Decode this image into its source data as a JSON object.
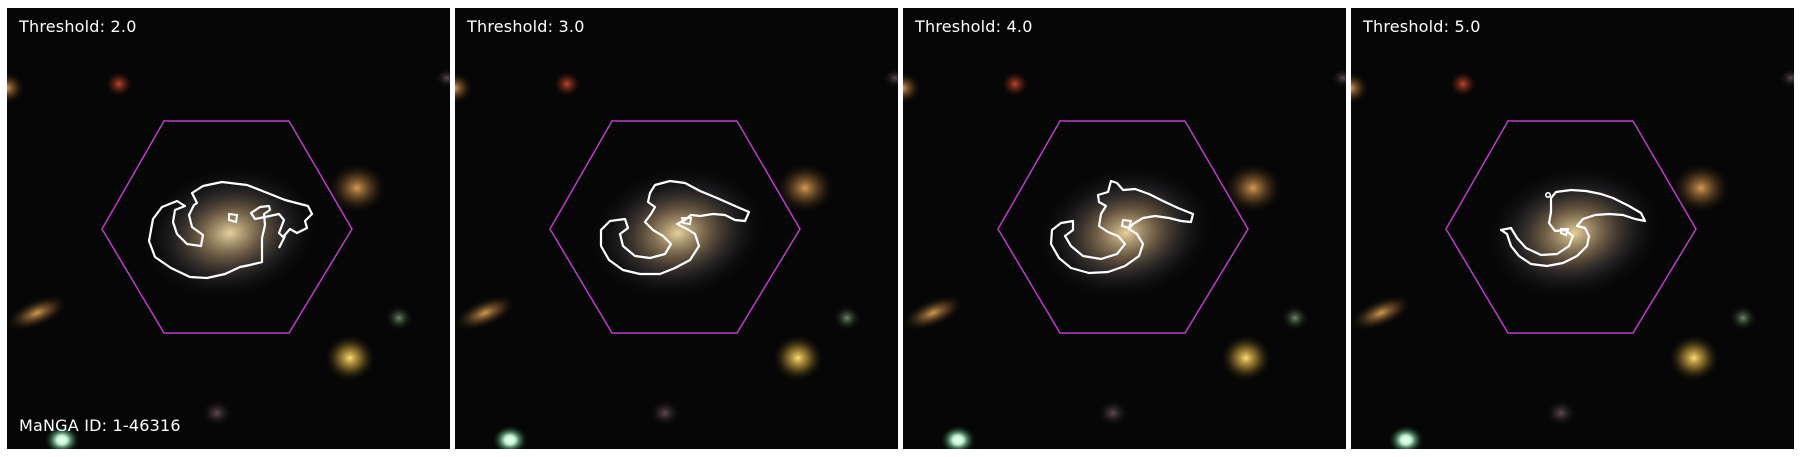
{
  "panels": [
    {
      "threshold_label": "Threshold: 2.0"
    },
    {
      "threshold_label": "Threshold: 3.0"
    },
    {
      "threshold_label": "Threshold: 4.0"
    },
    {
      "threshold_label": "Threshold: 5.0"
    }
  ],
  "galaxy_id_label": "MaNGA ID: 1-46316",
  "colors": {
    "hexagon": "#c13ad0",
    "contour": "#ffffff",
    "sky": "#060606",
    "galaxy_core": "#e8c98c"
  }
}
